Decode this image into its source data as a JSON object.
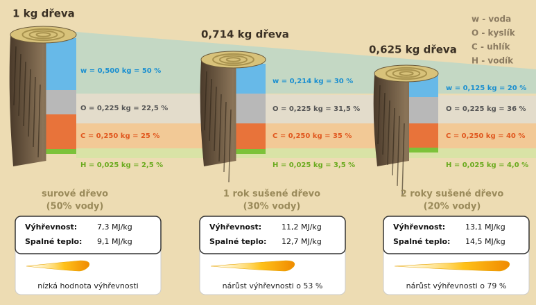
{
  "legend": [
    "w - voda",
    "O -  kyslík",
    "C - uhlík",
    "H - vodík"
  ],
  "columns": [
    {
      "weight": "1 kg dřeva",
      "components": [
        "w = 0,500 kg = 50 %",
        "O = 0,225 kg = 22,5 %",
        "C = 0,250 kg = 25 %",
        "H = 0,025 kg = 2,5 %"
      ],
      "label": "surové dřevo",
      "sublabel": "(50% vody)",
      "rows": [
        [
          "Výhřevnost:",
          "7,3 MJ/kg"
        ],
        [
          "Spalné teplo:",
          "9,1 MJ/kg"
        ]
      ],
      "note": "nízká hodnota výhřevnosti"
    },
    {
      "weight": "0,714 kg dřeva",
      "components": [
        "w = 0,214 kg = 30 %",
        "O = 0,225 kg = 31,5 %",
        "C = 0,250 kg = 35 %",
        "H = 0,025 kg = 3,5 %"
      ],
      "label": "1 rok sušené dřevo",
      "sublabel": "(30% vody)",
      "rows": [
        [
          "Výhřevnost:",
          "11,2 MJ/kg"
        ],
        [
          "Spalné teplo:",
          "12,7 MJ/kg"
        ]
      ],
      "note": "nárůst výhřevnosti o 53 %"
    },
    {
      "weight": "0,625 kg dřeva",
      "components": [
        "w = 0,125 kg = 20 %",
        "O = 0,225 kg = 36 %",
        "C = 0,250 kg = 40 %",
        "H = 0,025 kg = 4,0 %"
      ],
      "label": "2 roky sušené dřevo",
      "sublabel": "(20% vody)",
      "rows": [
        [
          "Výhřevnost:",
          "13,1 MJ/kg"
        ],
        [
          "Spalné teplo:",
          "14,5 MJ/kg"
        ]
      ],
      "note": "nárůst výhřevnosti o 79 %"
    }
  ]
}
